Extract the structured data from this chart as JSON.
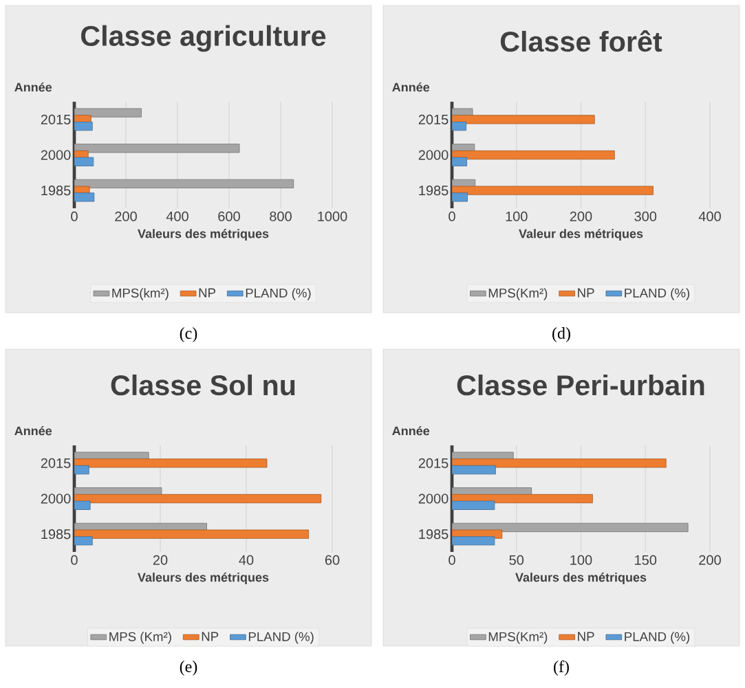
{
  "chart_data": [
    {
      "type": "bar",
      "orientation": "horizontal",
      "title": "Classe agriculture",
      "xlabel": "Valeurs des métriques",
      "ylabel": "Année",
      "categories": [
        "2015",
        "2000",
        "1985"
      ],
      "series": [
        {
          "name": "MPS(km²)",
          "color": "#a5a5a5",
          "values": [
            260,
            640,
            850
          ]
        },
        {
          "name": "NP",
          "color": "#ed7d31",
          "values": [
            65,
            54,
            59
          ]
        },
        {
          "name": "PLAND (%)",
          "color": "#5b9bd5",
          "values": [
            70,
            74,
            77
          ]
        }
      ],
      "xlim": [
        0,
        1000
      ],
      "xticks": [
        0,
        200,
        400,
        600,
        800,
        1000
      ],
      "grid": "x",
      "legend": "bottom",
      "annotations": [
        "(c)"
      ]
    },
    {
      "type": "bar",
      "orientation": "horizontal",
      "title": "Classe forêt",
      "xlabel": "Valeur des métriques",
      "ylabel": "Année",
      "categories": [
        "2015",
        "2000",
        "1985"
      ],
      "series": [
        {
          "name": "MPS(Km²)",
          "color": "#a5a5a5",
          "values": [
            32,
            35,
            36
          ]
        },
        {
          "name": "NP",
          "color": "#ed7d31",
          "values": [
            221,
            252,
            312
          ]
        },
        {
          "name": "PLAND (%)",
          "color": "#5b9bd5",
          "values": [
            22,
            23,
            24
          ]
        }
      ],
      "xlim": [
        0,
        400
      ],
      "xticks": [
        0,
        100,
        200,
        300,
        400
      ],
      "grid": "x",
      "legend": "bottom",
      "annotations": [
        "(d)"
      ]
    },
    {
      "type": "bar",
      "orientation": "horizontal",
      "title": "Classe Sol nu",
      "xlabel": "Valeurs des métriques",
      "ylabel": "Année",
      "categories": [
        "2015",
        "2000",
        "1985"
      ],
      "series": [
        {
          "name": "MPS (Km²)",
          "color": "#a5a5a5",
          "values": [
            17.3,
            20.3,
            30.8
          ]
        },
        {
          "name": "NP",
          "color": "#ed7d31",
          "values": [
            44.8,
            57.4,
            54.5
          ]
        },
        {
          "name": "PLAND (%)",
          "color": "#5b9bd5",
          "values": [
            3.4,
            3.7,
            4.2
          ]
        }
      ],
      "xlim": [
        0,
        60
      ],
      "xticks": [
        0,
        20,
        40,
        60
      ],
      "grid": "x",
      "legend": "bottom",
      "annotations": [
        "(e)"
      ]
    },
    {
      "type": "bar",
      "orientation": "horizontal",
      "title": "Classe Peri-urbain",
      "xlabel": "Valeurs des métriques",
      "ylabel": "Année",
      "categories": [
        "2015",
        "2000",
        "1985"
      ],
      "series": [
        {
          "name": "MPS(Km²)",
          "color": "#a5a5a5",
          "values": [
            47.6,
            61.7,
            183
          ]
        },
        {
          "name": "NP",
          "color": "#ed7d31",
          "values": [
            166,
            109,
            38.8
          ]
        },
        {
          "name": "PLAND (%)",
          "color": "#5b9bd5",
          "values": [
            33.8,
            33,
            33
          ]
        }
      ],
      "xlim": [
        0,
        200
      ],
      "xticks": [
        0,
        50,
        100,
        150,
        200
      ],
      "grid": "x",
      "legend": "bottom",
      "annotations": [
        "(f)"
      ]
    }
  ]
}
